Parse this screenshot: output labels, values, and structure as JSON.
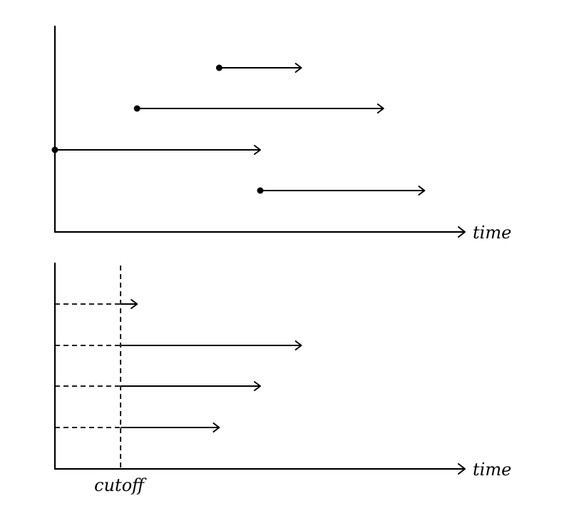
{
  "top_panel": {
    "axis_label": "time",
    "intervals": [
      {
        "start": 4.0,
        "end": 6.0
      },
      {
        "start": 2.0,
        "end": 8.0
      },
      {
        "start": 0.0,
        "end": 5.0
      },
      {
        "start": 5.0,
        "end": 9.0
      }
    ]
  },
  "bottom_panel": {
    "axis_label": "time",
    "cutoff_label": "cutoff",
    "cutoff": 1.6,
    "intervals": [
      {
        "end": 2.0
      },
      {
        "end": 6.0
      },
      {
        "end": 5.0
      },
      {
        "end": 4.0
      }
    ]
  }
}
